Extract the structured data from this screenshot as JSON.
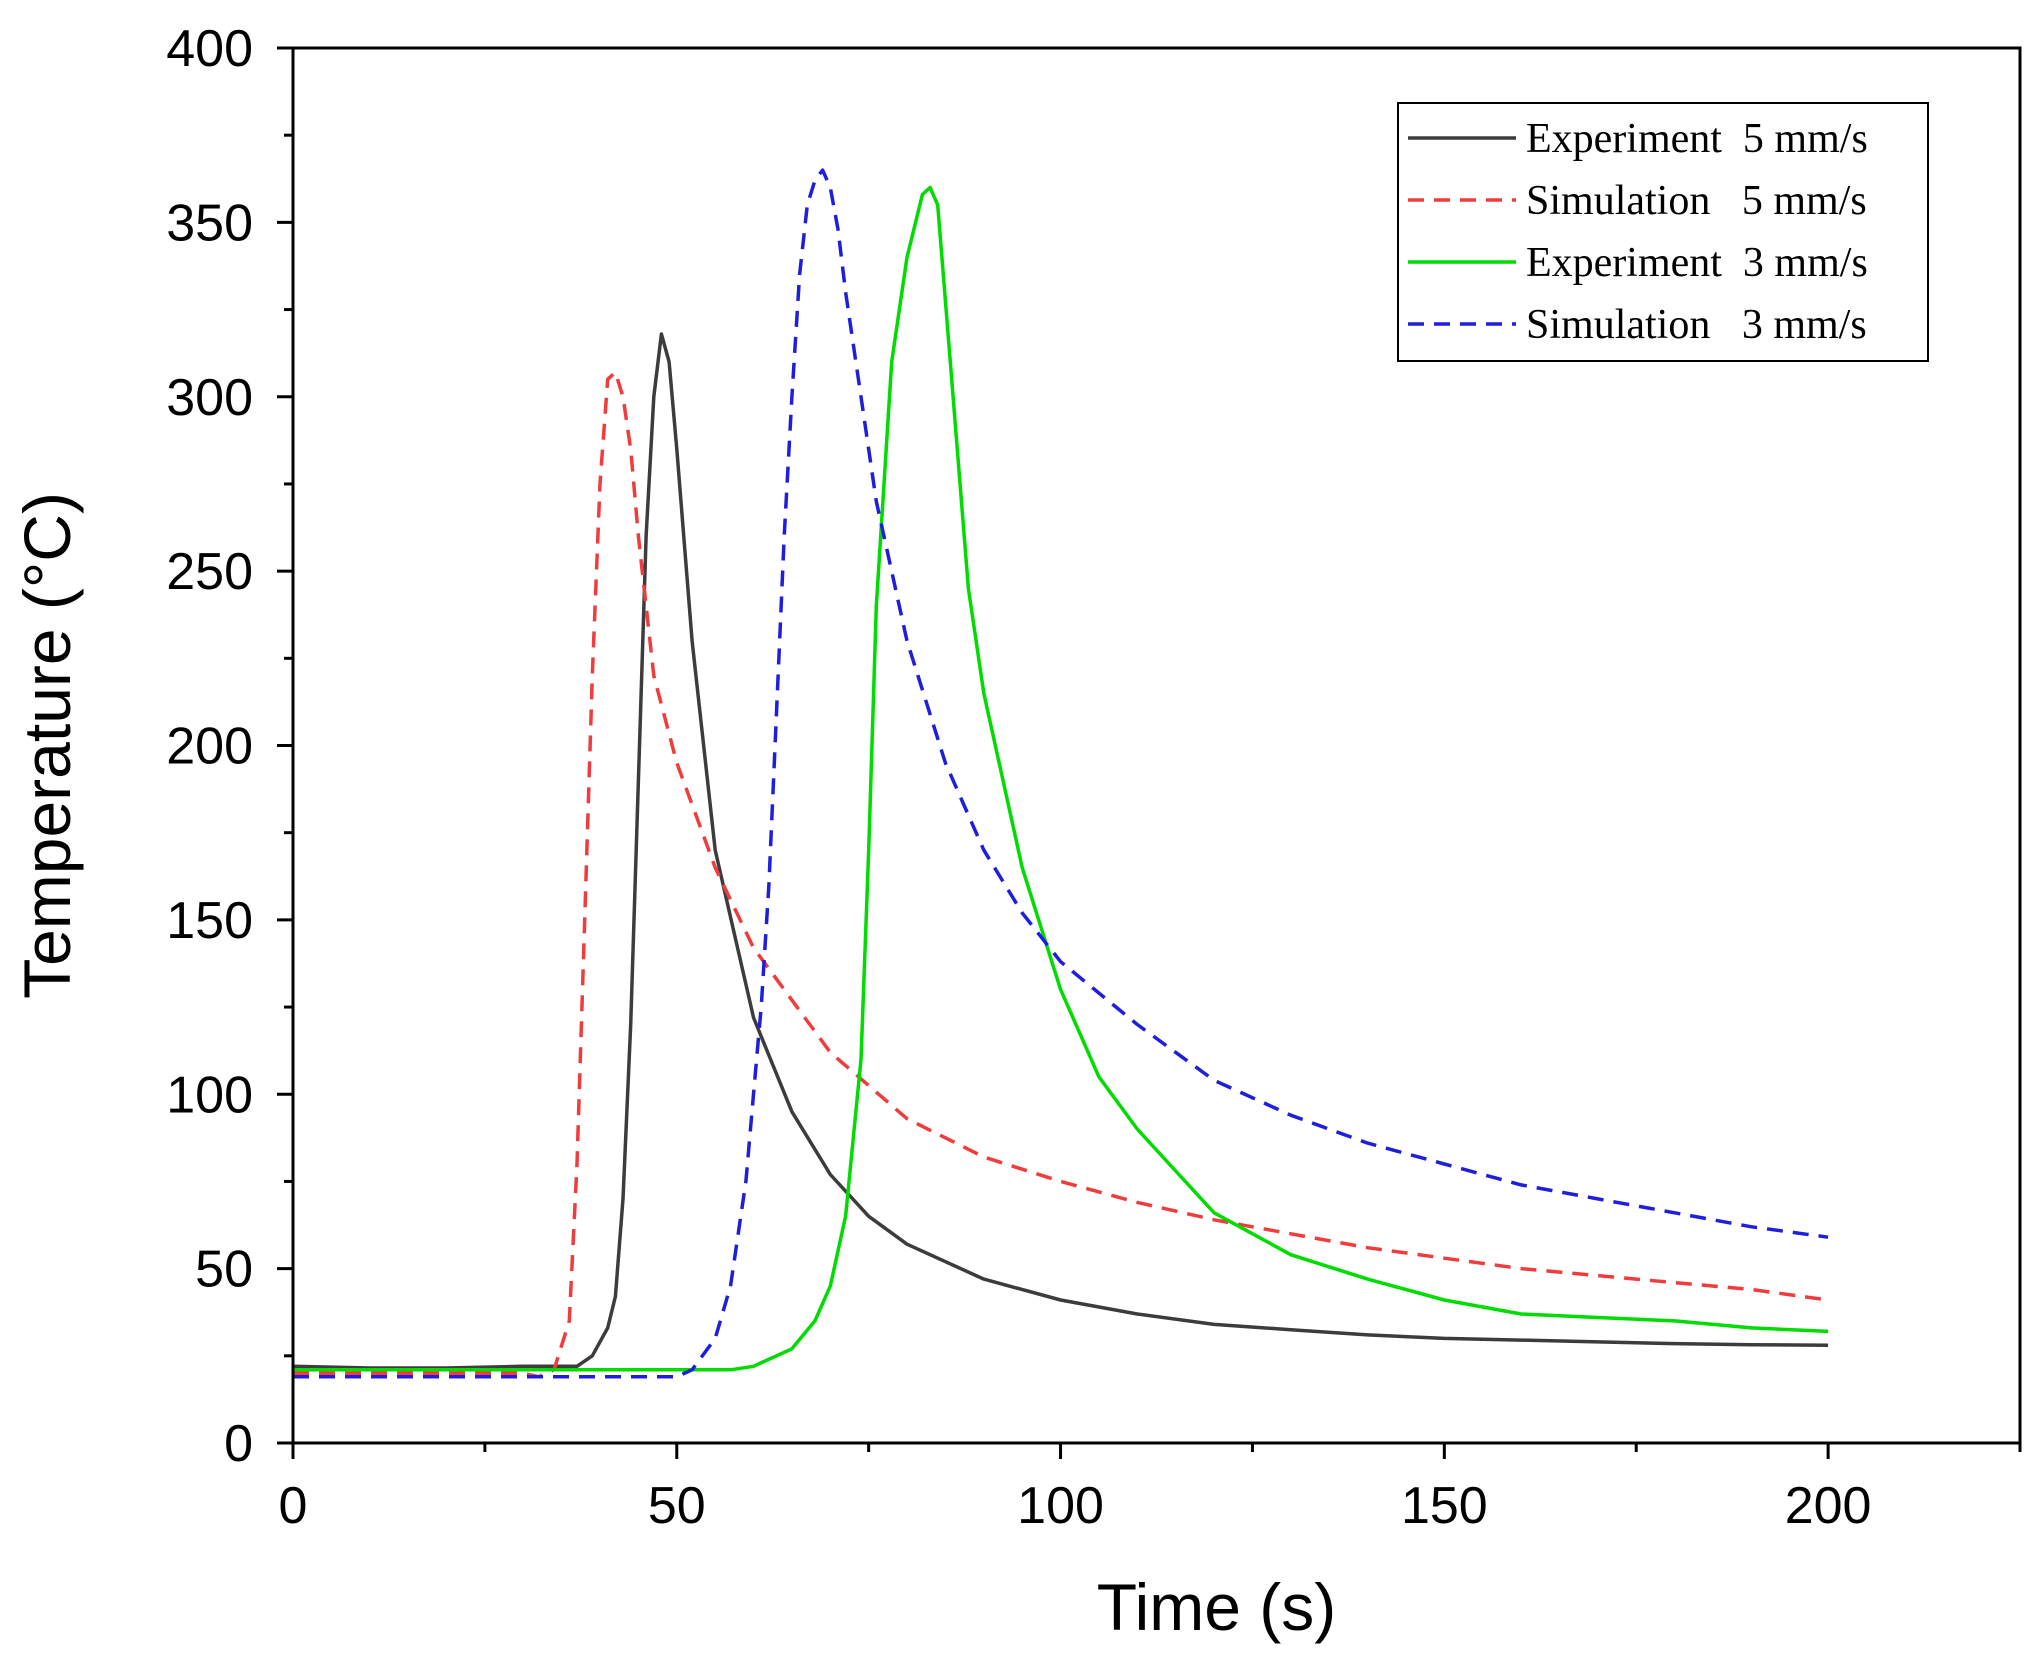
{
  "chart_data": {
    "type": "line",
    "title": "",
    "xlabel": "Time (s)",
    "ylabel": "Temperature (°C)",
    "xlim": [
      0,
      225
    ],
    "ylim": [
      0,
      400
    ],
    "xticks": [
      0,
      50,
      100,
      150,
      200
    ],
    "yticks": [
      0,
      50,
      100,
      150,
      200,
      250,
      300,
      350,
      400
    ],
    "grid": false,
    "legend_position": "top-right",
    "series": [
      {
        "name": "Experiment  5 mm/s",
        "color": "#3c3c3c",
        "style": "solid",
        "x": [
          0,
          10,
          20,
          30,
          37,
          39,
          41,
          42,
          43,
          44,
          45,
          46,
          47,
          48,
          49,
          50,
          52,
          55,
          60,
          65,
          70,
          75,
          80,
          90,
          100,
          110,
          120,
          130,
          140,
          150,
          160,
          170,
          180,
          190,
          200
        ],
        "y": [
          22,
          21.5,
          21.5,
          22,
          22,
          25,
          33,
          42,
          70,
          120,
          190,
          260,
          300,
          318,
          310,
          285,
          230,
          170,
          122,
          95,
          77,
          65,
          57,
          47,
          41,
          37,
          34,
          32.5,
          31,
          30,
          29.5,
          29,
          28.5,
          28.2,
          28
        ]
      },
      {
        "name": "Simulation   5 mm/s",
        "color": "#f03c3c",
        "style": "dashed",
        "x": [
          0,
          10,
          20,
          30,
          32,
          34,
          36,
          37,
          38,
          39,
          40,
          41,
          42,
          43,
          44,
          45,
          47,
          50,
          55,
          60,
          70,
          80,
          90,
          100,
          110,
          120,
          130,
          140,
          150,
          160,
          170,
          180,
          190,
          200
        ],
        "y": [
          20,
          20,
          20,
          20,
          19,
          21,
          35,
          80,
          150,
          220,
          275,
          305,
          307,
          300,
          285,
          260,
          220,
          195,
          165,
          142,
          112,
          93,
          82,
          75,
          69,
          64,
          60,
          56,
          53,
          50,
          48,
          46,
          44,
          41
        ]
      },
      {
        "name": "Experiment  3 mm/s",
        "color": "#00dc00",
        "style": "solid",
        "x": [
          0,
          10,
          20,
          30,
          40,
          50,
          57,
          60,
          65,
          68,
          70,
          72,
          74,
          75,
          76,
          78,
          80,
          82,
          83,
          84,
          86,
          88,
          90,
          95,
          100,
          105,
          110,
          115,
          120,
          130,
          140,
          150,
          160,
          170,
          180,
          190,
          200
        ],
        "y": [
          21,
          21,
          21,
          21,
          21,
          21,
          21,
          22,
          27,
          35,
          45,
          65,
          110,
          170,
          240,
          310,
          340,
          358,
          360,
          355,
          300,
          245,
          215,
          165,
          130,
          105,
          90,
          78,
          66,
          54,
          47,
          41,
          37,
          36,
          35,
          33,
          32
        ]
      },
      {
        "name": "Simulation   3 mm/s",
        "color": "#1e1edc",
        "style": "dashed",
        "x": [
          0,
          10,
          20,
          30,
          40,
          50,
          52,
          55,
          57,
          59,
          60,
          61,
          62,
          63,
          64,
          65,
          66,
          67,
          68,
          69,
          70,
          71,
          72,
          74,
          76,
          80,
          85,
          90,
          95,
          100,
          110,
          120,
          130,
          140,
          150,
          160,
          170,
          180,
          190,
          200
        ],
        "y": [
          19,
          19,
          19,
          19,
          19,
          19,
          21,
          30,
          45,
          75,
          100,
          125,
          160,
          210,
          260,
          300,
          335,
          355,
          362,
          365,
          360,
          348,
          330,
          300,
          270,
          230,
          195,
          170,
          152,
          138,
          120,
          104,
          94,
          86,
          80,
          74,
          70,
          66,
          62,
          59
        ]
      }
    ]
  }
}
